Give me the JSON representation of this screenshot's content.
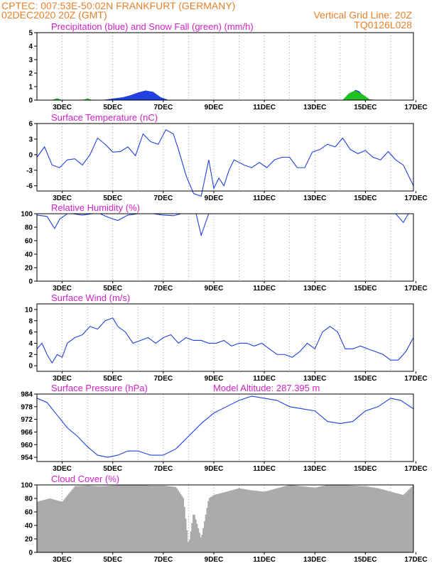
{
  "header": {
    "line1_left": "CPTEC:   007:53E-50:02N   FRANKFURT (GERMANY)",
    "line2_left": "02DEC2020 20Z (GMT)",
    "line2_right": "Vertical Grid Line: 20Z",
    "line3_right": "TQ0126L028"
  },
  "colors": {
    "line": "#2040e0",
    "precip": "#2040e0",
    "snow": "#20c020",
    "cloud": "#aaaaaa",
    "title": "#d020c8",
    "header": "#e8802a"
  },
  "x_ticks": [
    "3DEC",
    "5DEC",
    "7DEC",
    "9DEC",
    "11DEC",
    "13DEC",
    "15DEC",
    "17DEC"
  ],
  "chart_data": [
    {
      "id": "precip",
      "type": "area",
      "title": "Precipitation (blue) and Snow Fall (green) (mm/h)",
      "ylim": [
        0,
        5
      ],
      "yticks": [
        "0",
        "1",
        "2",
        "3",
        "4",
        "5"
      ],
      "xlim": [
        0,
        14.9
      ],
      "series": [
        {
          "name": "Precipitation",
          "x": [
            2.6,
            3.0,
            3.4,
            3.7,
            4.0,
            4.3,
            4.6,
            4.9,
            5.2,
            7.5,
            12.2,
            12.45,
            12.6,
            12.75,
            12.9,
            13.1,
            13.4
          ],
          "y": [
            0,
            0.1,
            0.2,
            0.35,
            0.55,
            0.7,
            0.6,
            0.2,
            0,
            0,
            0,
            0.5,
            0.75,
            0.65,
            0.35,
            0.05,
            0
          ]
        },
        {
          "name": "Snow Fall",
          "x": [
            0.6,
            0.8,
            1.0,
            1.8,
            2.0,
            2.2,
            12.1,
            12.35,
            12.6,
            12.9,
            13.2
          ],
          "y": [
            0,
            0.12,
            0,
            0,
            0.1,
            0,
            0,
            0.5,
            0.7,
            0.4,
            0
          ]
        }
      ]
    },
    {
      "id": "temp",
      "type": "line",
      "title": "Surface Temperature (nC)",
      "ylim": [
        -7,
        6
      ],
      "yticks": [
        "-6",
        "-3",
        "0",
        "3",
        "6"
      ],
      "xlim": [
        0,
        14.9
      ],
      "x": [
        0,
        0.3,
        0.6,
        0.9,
        1.2,
        1.5,
        1.8,
        2.1,
        2.4,
        2.7,
        3.0,
        3.3,
        3.6,
        3.9,
        4.2,
        4.5,
        4.8,
        5.1,
        5.4,
        5.6,
        5.9,
        6.2,
        6.5,
        6.8,
        7.0,
        7.2,
        7.4,
        7.6,
        7.8,
        8.0,
        8.2,
        8.5,
        8.8,
        9.1,
        9.4,
        9.7,
        10.0,
        10.3,
        10.6,
        10.9,
        11.2,
        11.5,
        11.8,
        12.1,
        12.4,
        12.7,
        13.0,
        13.3,
        13.6,
        13.9,
        14.2,
        14.5,
        14.9
      ],
      "y": [
        -0.5,
        1.5,
        -2,
        -2.5,
        -1,
        -0.8,
        -2,
        0,
        3.2,
        2,
        0.5,
        0.6,
        1.5,
        -0.2,
        4,
        2.5,
        2,
        4.8,
        4,
        1,
        -4,
        -7.5,
        -8,
        -1,
        -6.5,
        -4.5,
        -6,
        -3,
        -1,
        -1.5,
        -2,
        -2.5,
        -1.5,
        -2.5,
        -1,
        -0.5,
        -0.5,
        -2.5,
        -2.5,
        0.5,
        1,
        2,
        1.5,
        3.2,
        1,
        0.2,
        0.8,
        -0.5,
        -1,
        0.6,
        -1,
        -2,
        -6
      ]
    },
    {
      "id": "rh",
      "type": "line",
      "title": "Relative Humidity (%)",
      "ylim": [
        0,
        100
      ],
      "yticks": [
        "0",
        "20",
        "40",
        "60",
        "80",
        "100"
      ],
      "xlim": [
        0,
        14.9
      ],
      "x": [
        0,
        0.4,
        0.7,
        0.9,
        1.2,
        1.4,
        1.8,
        2.2,
        2.5,
        2.8,
        3.2,
        3.6,
        4.0,
        4.3,
        4.6,
        5.0,
        5.4,
        5.7,
        6.0,
        6.3,
        6.5,
        6.8,
        7.2,
        7.6,
        7.9,
        8.2,
        8.6,
        9.0,
        9.4,
        9.8,
        10.2,
        10.6,
        11.0,
        11.4,
        11.8,
        12.2,
        12.6,
        13.0,
        13.4,
        13.8,
        14.2,
        14.5,
        14.7,
        14.9
      ],
      "y": [
        98,
        96,
        78,
        92,
        100,
        100,
        98,
        100,
        100,
        95,
        90,
        98,
        100,
        100,
        100,
        98,
        97,
        100,
        100,
        100,
        68,
        100,
        100,
        100,
        100,
        100,
        100,
        100,
        100,
        100,
        100,
        100,
        100,
        100,
        100,
        100,
        100,
        100,
        100,
        100,
        100,
        87,
        100,
        100
      ]
    },
    {
      "id": "wind",
      "type": "line",
      "title": "Surface Wind (m/s)",
      "ylim": [
        -1,
        11
      ],
      "yticks": [
        "0",
        "2",
        "4",
        "6",
        "8",
        "10"
      ],
      "xlim": [
        0,
        14.9
      ],
      "x": [
        0,
        0.2,
        0.4,
        0.6,
        0.8,
        1.0,
        1.2,
        1.5,
        1.8,
        2.1,
        2.4,
        2.7,
        3.0,
        3.2,
        3.5,
        3.8,
        4.1,
        4.4,
        4.7,
        5.0,
        5.3,
        5.6,
        5.9,
        6.2,
        6.5,
        6.8,
        7.1,
        7.4,
        7.7,
        8.0,
        8.3,
        8.6,
        8.9,
        9.2,
        9.5,
        9.8,
        10.1,
        10.4,
        10.7,
        11.0,
        11.3,
        11.6,
        11.9,
        12.2,
        12.5,
        12.8,
        13.1,
        13.4,
        13.7,
        14.0,
        14.3,
        14.6,
        14.9
      ],
      "y": [
        3,
        4,
        2,
        0.5,
        2,
        1.5,
        4,
        5,
        5.5,
        7,
        6.5,
        8,
        8.5,
        7,
        6,
        4,
        4.5,
        5,
        4,
        5,
        5.5,
        4,
        5,
        4.5,
        4.5,
        4,
        4,
        4.5,
        3.5,
        4,
        4,
        3.5,
        4,
        3,
        2,
        2,
        1.5,
        2.5,
        4,
        3,
        6,
        7,
        6,
        3,
        3,
        3.5,
        3,
        2.5,
        2,
        1,
        1,
        2.5,
        5
      ]
    },
    {
      "id": "pressure",
      "type": "line",
      "title": "Surface Pressure (hPa)",
      "annotation": "Model Altitude: 287.395 m",
      "ylim": [
        952,
        984
      ],
      "yticks": [
        "954",
        "960",
        "966",
        "972",
        "978",
        "984"
      ],
      "xlim": [
        0,
        14.9
      ],
      "x": [
        0,
        0.4,
        0.8,
        1.2,
        1.6,
        2.0,
        2.4,
        2.8,
        3.2,
        3.6,
        4.0,
        4.5,
        5.0,
        5.5,
        6.0,
        6.5,
        7.0,
        7.5,
        8.0,
        8.5,
        9.0,
        9.5,
        10.0,
        10.5,
        11.0,
        11.5,
        12.0,
        12.5,
        13.0,
        13.5,
        14.0,
        14.4,
        14.9
      ],
      "y": [
        982,
        980,
        974,
        968,
        964,
        959,
        955,
        954,
        955,
        957,
        957,
        955,
        955,
        958,
        964,
        970,
        975,
        978,
        981,
        983,
        982,
        981,
        978,
        977,
        976,
        971,
        970,
        971,
        976,
        978,
        982,
        981,
        977
      ]
    },
    {
      "id": "cloud",
      "type": "bar",
      "title": "Cloud Cover (%)",
      "ylim": [
        0,
        100
      ],
      "yticks": [
        "0",
        "20",
        "40",
        "60",
        "80",
        "100"
      ],
      "xlim": [
        0,
        14.9
      ],
      "x": [
        0,
        0.5,
        1.0,
        1.5,
        2.0,
        2.5,
        3.0,
        3.5,
        4.0,
        4.5,
        5.0,
        5.5,
        5.8,
        6.0,
        6.2,
        6.5,
        6.8,
        7.0,
        7.5,
        8.0,
        8.5,
        9.0,
        9.5,
        10.0,
        10.5,
        11.0,
        11.5,
        12.0,
        12.5,
        13.0,
        13.5,
        14.0,
        14.5,
        14.9
      ],
      "y": [
        75,
        80,
        75,
        98,
        99,
        98,
        99,
        100,
        100,
        99,
        99,
        97,
        80,
        10,
        60,
        20,
        80,
        85,
        90,
        95,
        92,
        90,
        95,
        100,
        98,
        96,
        100,
        100,
        99,
        98,
        95,
        90,
        85,
        100
      ]
    }
  ]
}
